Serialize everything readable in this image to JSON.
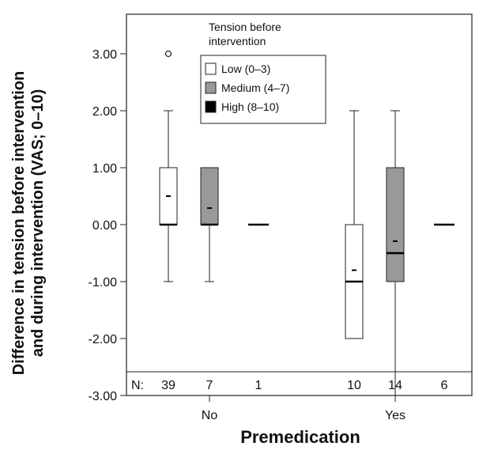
{
  "chart_data": {
    "type": "boxplot",
    "xlabel": "Premedication",
    "ylabel_line1": "Difference in tension before intervention",
    "ylabel_line2": "and during intervention (VAS; 0–10)",
    "ylim": [
      -3.0,
      3.6
    ],
    "yticks": [
      3.0,
      2.0,
      1.0,
      0.0,
      -1.0,
      -2.0,
      -3.0
    ],
    "ytick_labels": [
      "3.00",
      "2.00",
      "1.00",
      "0.00",
      "-1.00",
      "-2.00",
      "-3.00"
    ],
    "groups": [
      "No",
      "Yes"
    ],
    "legend": {
      "title_line1": "Tension before",
      "title_line2": "intervention",
      "entries": [
        {
          "label": "Low (0–3)",
          "color": "#ffffff"
        },
        {
          "label": "Medium (4–7)",
          "color": "#999999"
        },
        {
          "label": "High (8–10)",
          "color": "#000000"
        }
      ]
    },
    "n_prefix": "N:",
    "boxes": [
      {
        "group": "No",
        "series": "Low (0–3)",
        "n": "39",
        "whisker_low": -1.0,
        "q1": 0.0,
        "median": 0.0,
        "q3": 1.0,
        "whisker_high": 2.0,
        "mean": 0.5,
        "outliers": [
          3.0
        ]
      },
      {
        "group": "No",
        "series": "Medium (4–7)",
        "n": "7",
        "whisker_low": -1.0,
        "q1": 0.0,
        "median": 0.0,
        "q3": 1.0,
        "whisker_high": 1.0,
        "mean": 0.29,
        "outliers": []
      },
      {
        "group": "No",
        "series": "High (8–10)",
        "n": "1",
        "whisker_low": 0.0,
        "q1": 0.0,
        "median": 0.0,
        "q3": 0.0,
        "whisker_high": 0.0,
        "mean": 0.0,
        "outliers": []
      },
      {
        "group": "Yes",
        "series": "Low (0–3)",
        "n": "10",
        "whisker_low": -2.0,
        "q1": -2.0,
        "median": -1.0,
        "q3": 0.0,
        "whisker_high": 2.0,
        "mean": -0.8,
        "outliers": []
      },
      {
        "group": "Yes",
        "series": "Medium (4–7)",
        "n": "14",
        "whisker_low": -3.0,
        "q1": -1.0,
        "median": -0.5,
        "q3": 1.0,
        "whisker_high": 2.0,
        "mean": -0.29,
        "outliers": []
      },
      {
        "group": "Yes",
        "series": "High (8–10)",
        "n": "6",
        "whisker_low": 0.0,
        "q1": 0.0,
        "median": 0.0,
        "q3": 0.0,
        "whisker_high": 0.0,
        "mean": 0.0,
        "outliers": []
      }
    ]
  }
}
